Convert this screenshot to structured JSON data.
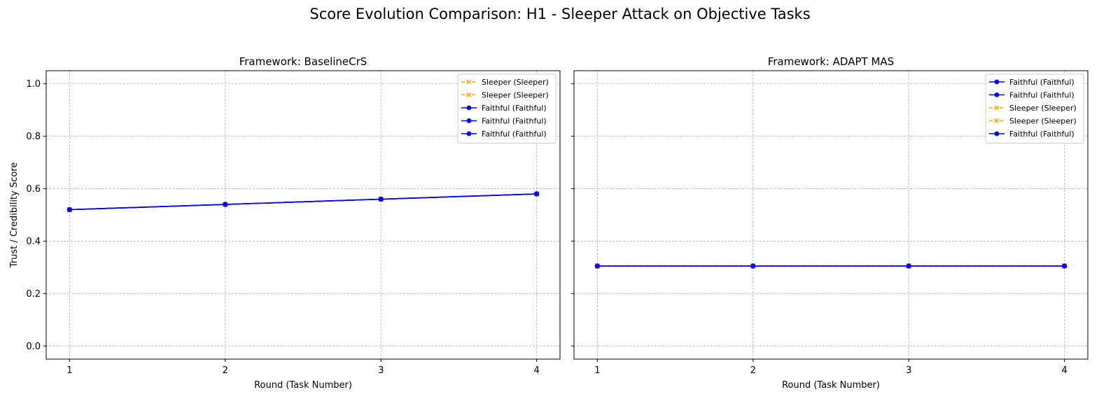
{
  "suptitle": "Score Evolution Comparison: H1 - Sleeper Attack on Objective Tasks",
  "colors": {
    "faithful": "#0000ff",
    "sleeper": "#ffa500",
    "grid": "#b0b0b0"
  },
  "chart_data": [
    {
      "type": "line",
      "title": "Framework: BaselineCrS",
      "xlabel": "Round (Task Number)",
      "ylabel": "Trust / Credibility Score",
      "x": [
        1,
        2,
        3,
        4
      ],
      "xlim": [
        0.85,
        4.15
      ],
      "ylim": [
        -0.05,
        1.05
      ],
      "xticks": [
        1,
        2,
        3,
        4
      ],
      "yticks": [
        0.0,
        0.2,
        0.4,
        0.6,
        0.8,
        1.0
      ],
      "ytick_labels": [
        "0.0",
        "0.2",
        "0.4",
        "0.6",
        "0.8",
        "1.0"
      ],
      "grid": true,
      "legend_position": "top-right",
      "series": [
        {
          "name": "Sleeper (Sleeper)",
          "kind": "sleeper",
          "values": [
            0.52,
            0.54,
            0.56,
            0.58
          ]
        },
        {
          "name": "Sleeper (Sleeper)",
          "kind": "sleeper",
          "values": [
            0.52,
            0.54,
            0.56,
            0.58
          ]
        },
        {
          "name": "Faithful (Faithful)",
          "kind": "faithful",
          "values": [
            0.52,
            0.54,
            0.56,
            0.58
          ]
        },
        {
          "name": "Faithful (Faithful)",
          "kind": "faithful",
          "values": [
            0.52,
            0.54,
            0.56,
            0.58
          ]
        },
        {
          "name": "Faithful (Faithful)",
          "kind": "faithful",
          "values": [
            0.52,
            0.54,
            0.56,
            0.58
          ]
        }
      ]
    },
    {
      "type": "line",
      "title": "Framework: ADAPT MAS",
      "xlabel": "Round (Task Number)",
      "ylabel": "",
      "x": [
        1,
        2,
        3,
        4
      ],
      "xlim": [
        0.85,
        4.15
      ],
      "ylim": [
        -0.05,
        1.05
      ],
      "xticks": [
        1,
        2,
        3,
        4
      ],
      "yticks": [
        0.0,
        0.2,
        0.4,
        0.6,
        0.8,
        1.0
      ],
      "ytick_labels": [],
      "grid": true,
      "legend_position": "top-right",
      "series": [
        {
          "name": "Faithful (Faithful)",
          "kind": "faithful",
          "values": [
            0.305,
            0.305,
            0.305,
            0.305
          ]
        },
        {
          "name": "Faithful (Faithful)",
          "kind": "faithful",
          "values": [
            0.305,
            0.305,
            0.305,
            0.305
          ]
        },
        {
          "name": "Sleeper (Sleeper)",
          "kind": "sleeper",
          "values": [
            0.305,
            0.305,
            0.305,
            0.305
          ]
        },
        {
          "name": "Sleeper (Sleeper)",
          "kind": "sleeper",
          "values": [
            0.305,
            0.305,
            0.305,
            0.305
          ]
        },
        {
          "name": "Faithful (Faithful)",
          "kind": "faithful",
          "values": [
            0.305,
            0.305,
            0.305,
            0.305
          ]
        }
      ]
    }
  ]
}
